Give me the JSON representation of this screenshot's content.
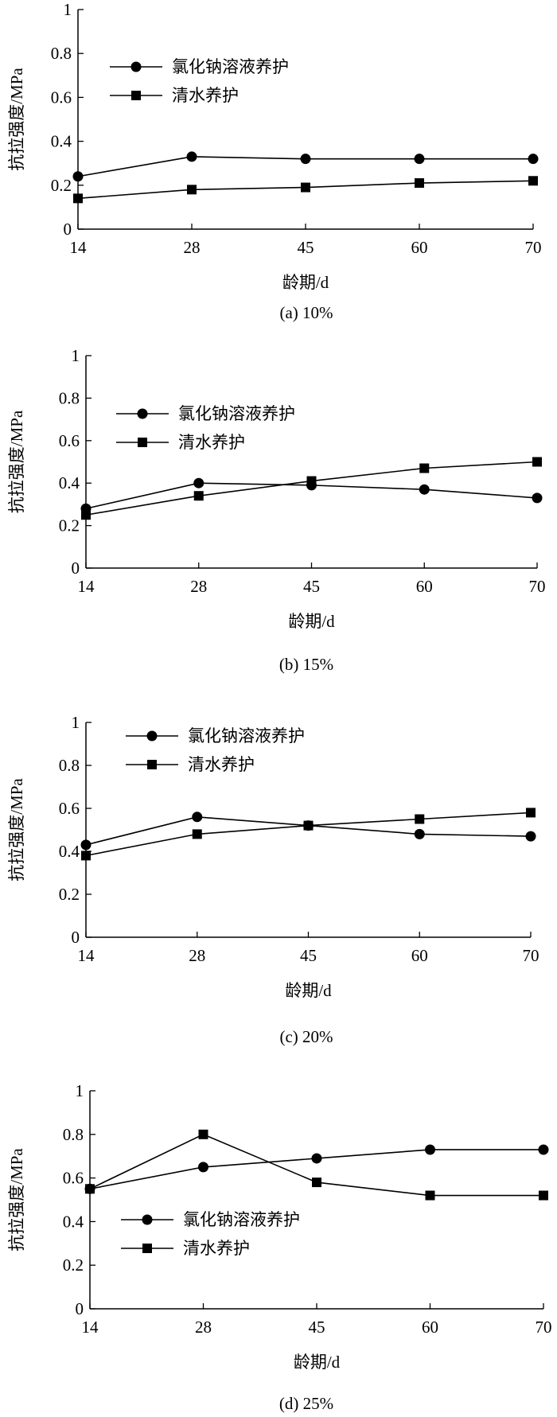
{
  "chart_data": [
    {
      "type": "line",
      "title": "(a) 10%",
      "xlabel": "龄期/d",
      "ylabel": "抗拉强度/MPa",
      "categories": [
        "14",
        "28",
        "45",
        "60",
        "70"
      ],
      "yticks": [
        "0",
        "0.2",
        "0.4",
        "0.6",
        "0.8",
        "1"
      ],
      "ylim": [
        0,
        1
      ],
      "legend_position": "top-left",
      "series": [
        {
          "name": "氯化钠溶液养护",
          "marker": "circle",
          "values": [
            0.24,
            0.33,
            0.32,
            0.32,
            0.32
          ]
        },
        {
          "name": "清水养护",
          "marker": "square",
          "values": [
            0.14,
            0.18,
            0.19,
            0.21,
            0.22
          ]
        }
      ]
    },
    {
      "type": "line",
      "title": "(b) 15%",
      "xlabel": "龄期/d",
      "ylabel": "抗拉强度/MPa",
      "categories": [
        "14",
        "28",
        "45",
        "60",
        "70"
      ],
      "yticks": [
        "0",
        "0.2",
        "0.4",
        "0.6",
        "0.8",
        "1"
      ],
      "ylim": [
        0,
        1
      ],
      "legend_position": "top-left",
      "series": [
        {
          "name": "氯化钠溶液养护",
          "marker": "circle",
          "values": [
            0.28,
            0.4,
            0.39,
            0.37,
            0.33
          ]
        },
        {
          "name": "清水养护",
          "marker": "square",
          "values": [
            0.25,
            0.34,
            0.41,
            0.47,
            0.5
          ]
        }
      ]
    },
    {
      "type": "line",
      "title": "(c) 20%",
      "xlabel": "龄期/d",
      "ylabel": "抗拉强度/MPa",
      "categories": [
        "14",
        "28",
        "45",
        "60",
        "70"
      ],
      "yticks": [
        "0",
        "0.2",
        "0.4",
        "0.6",
        "0.8",
        "1"
      ],
      "ylim": [
        0,
        1
      ],
      "legend_position": "top-left",
      "series": [
        {
          "name": "氯化钠溶液养护",
          "marker": "circle",
          "values": [
            0.43,
            0.56,
            0.52,
            0.48,
            0.47
          ]
        },
        {
          "name": "清水养护",
          "marker": "square",
          "values": [
            0.38,
            0.48,
            0.52,
            0.55,
            0.58
          ]
        }
      ]
    },
    {
      "type": "line",
      "title": "(d) 25%",
      "xlabel": "龄期/d",
      "ylabel": "抗拉强度/MPa",
      "categories": [
        "14",
        "28",
        "45",
        "60",
        "70"
      ],
      "yticks": [
        "0",
        "0.2",
        "0.4",
        "0.6",
        "0.8",
        "1"
      ],
      "ylim": [
        0,
        1
      ],
      "legend_position": "bottom-left",
      "series": [
        {
          "name": "氯化钠溶液养护",
          "marker": "circle",
          "values": [
            0.55,
            0.65,
            0.69,
            0.73,
            0.73
          ]
        },
        {
          "name": "清水养护",
          "marker": "square",
          "values": [
            0.55,
            0.8,
            0.58,
            0.52,
            0.52
          ]
        }
      ]
    }
  ]
}
